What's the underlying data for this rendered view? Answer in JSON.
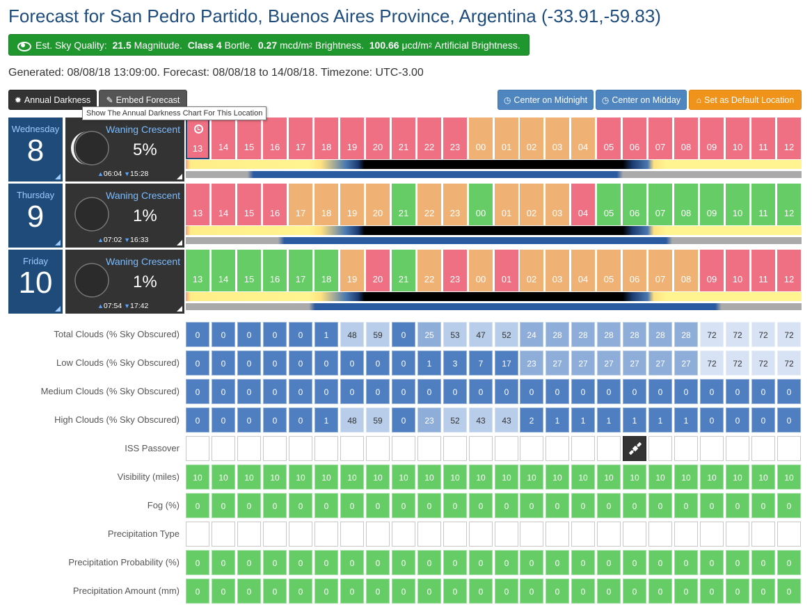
{
  "header": {
    "title": "Forecast for San Pedro Partido, Buenos Aires Province, Argentina (-33.91,-59.83)",
    "sky": {
      "label": "Est. Sky Quality:",
      "magnitude": "21.5",
      "magnitude_unit": "Magnitude.",
      "class_label": "Class 4",
      "bortle": "Bortle.",
      "brightness": "0.27",
      "brightness_unit": "mcd/m",
      "brightness_label": "Brightness.",
      "artificial": "100.66",
      "artificial_unit": "μcd/m",
      "artificial_label": "Artificial Brightness."
    },
    "generated": "Generated: 08/08/18 13:09:00. Forecast: 08/08/18 to 14/08/18. Timezone: UTC-3.00"
  },
  "toolbar": {
    "annual": "Annual Darkness",
    "embed": "Embed Forecast",
    "midnight": "Center on Midnight",
    "midday": "Center on Midday",
    "default": "Set as Default Location",
    "tooltip": "Show The Annual Darkness Chart For This Location"
  },
  "colors": {
    "red": "#f07083",
    "orange": "#f0b274",
    "green": "#66cc66",
    "day_bg": "#1e4b7a",
    "moon_bg": "#333333"
  },
  "hours": [
    "13",
    "14",
    "15",
    "16",
    "17",
    "18",
    "19",
    "20",
    "21",
    "22",
    "23",
    "00",
    "01",
    "02",
    "03",
    "04",
    "05",
    "06",
    "07",
    "08",
    "09",
    "10",
    "11",
    "12"
  ],
  "days": [
    {
      "name": "Wednesday",
      "date": "8",
      "phase": "Waning Crescent",
      "illum": "5%",
      "rise": "06:04",
      "set": "15:28",
      "hour_colors": [
        "r",
        "r",
        "r",
        "r",
        "r",
        "r",
        "r",
        "r",
        "r",
        "r",
        "r",
        "o",
        "o",
        "o",
        "o",
        "o",
        "r",
        "r",
        "r",
        "r",
        "r",
        "r",
        "r",
        "r"
      ]
    },
    {
      "name": "Thursday",
      "date": "9",
      "phase": "Waning Crescent",
      "illum": "1%",
      "rise": "07:02",
      "set": "16:33",
      "hour_colors": [
        "r",
        "r",
        "r",
        "r",
        "o",
        "o",
        "o",
        "o",
        "g",
        "o",
        "o",
        "g",
        "o",
        "o",
        "o",
        "r",
        "g",
        "g",
        "g",
        "g",
        "g",
        "g",
        "g",
        "g"
      ]
    },
    {
      "name": "Friday",
      "date": "10",
      "phase": "Waning Crescent",
      "illum": "1%",
      "rise": "07:54",
      "set": "17:42",
      "hour_colors": [
        "g",
        "g",
        "g",
        "g",
        "g",
        "g",
        "o",
        "r",
        "g",
        "o",
        "r",
        "o",
        "r",
        "o",
        "o",
        "o",
        "o",
        "o",
        "o",
        "o",
        "r",
        "r",
        "r",
        "r"
      ]
    }
  ],
  "rows": [
    {
      "label": "Total Clouds (% Sky Obscured)",
      "type": "cloud",
      "values": [
        0,
        0,
        0,
        0,
        0,
        1,
        48,
        59,
        0,
        25,
        53,
        47,
        52,
        24,
        28,
        28,
        28,
        28,
        28,
        28,
        72,
        72,
        72,
        72
      ]
    },
    {
      "label": "Low Clouds (% Sky Obscured)",
      "type": "cloud",
      "values": [
        0,
        0,
        0,
        0,
        0,
        0,
        0,
        0,
        0,
        1,
        3,
        7,
        17,
        23,
        27,
        27,
        27,
        27,
        27,
        27,
        72,
        72,
        72,
        72
      ]
    },
    {
      "label": "Medium Clouds (% Sky Obscured)",
      "type": "cloud",
      "values": [
        0,
        0,
        0,
        0,
        0,
        0,
        0,
        0,
        0,
        0,
        0,
        0,
        0,
        0,
        0,
        0,
        0,
        0,
        0,
        0,
        0,
        0,
        0,
        0
      ]
    },
    {
      "label": "High Clouds (% Sky Obscured)",
      "type": "cloud",
      "values": [
        0,
        0,
        0,
        0,
        0,
        1,
        48,
        59,
        0,
        23,
        52,
        43,
        43,
        2,
        1,
        1,
        1,
        1,
        1,
        1,
        0,
        0,
        0,
        0
      ]
    },
    {
      "label": "ISS Passover",
      "type": "iss",
      "values": [
        "",
        "",
        "",
        "",
        "",
        "",
        "",
        "",
        "",
        "",
        "",
        "",
        "",
        "",
        "",
        "",
        "",
        "x",
        "",
        "",
        "",
        "",
        "",
        ""
      ]
    },
    {
      "label": "Visibility (miles)",
      "type": "green",
      "values": [
        10,
        10,
        10,
        10,
        10,
        10,
        10,
        10,
        10,
        10,
        10,
        10,
        10,
        10,
        10,
        10,
        10,
        10,
        10,
        10,
        10,
        10,
        10,
        10
      ]
    },
    {
      "label": "Fog (%)",
      "type": "green",
      "values": [
        0,
        0,
        0,
        0,
        0,
        0,
        0,
        0,
        0,
        0,
        0,
        0,
        0,
        0,
        0,
        0,
        0,
        0,
        0,
        0,
        0,
        0,
        0,
        0
      ]
    },
    {
      "label": "Precipitation Type",
      "type": "empty",
      "values": [
        "",
        "",
        "",
        "",
        "",
        "",
        "",
        "",
        "",
        "",
        "",
        "",
        "",
        "",
        "",
        "",
        "",
        "",
        "",
        "",
        "",
        "",
        "",
        ""
      ]
    },
    {
      "label": "Precipitation Probability (%)",
      "type": "green",
      "values": [
        0,
        0,
        0,
        0,
        0,
        0,
        0,
        0,
        0,
        0,
        0,
        0,
        0,
        0,
        0,
        0,
        0,
        0,
        0,
        0,
        0,
        0,
        0,
        0
      ]
    },
    {
      "label": "Precipitation Amount (mm)",
      "type": "green",
      "values": [
        0,
        0,
        0,
        0,
        0,
        0,
        0,
        0,
        0,
        0,
        0,
        0,
        0,
        0,
        0,
        0,
        0,
        0,
        0,
        0,
        0,
        0,
        0,
        0
      ]
    }
  ]
}
